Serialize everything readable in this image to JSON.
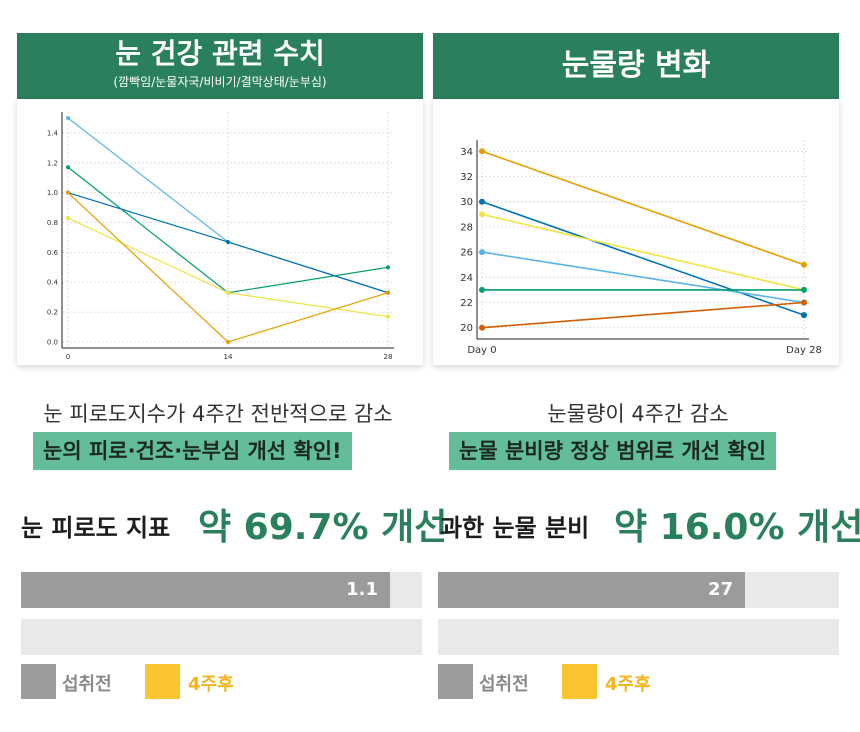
{
  "left_panel": {
    "title": "눈 건강 관련 수치",
    "subtitle": "(깜빡임/눈물자국/비비기/결막상태/눈부심)",
    "caption": "눈 피로도지수가 4주간 전반적으로 감소",
    "badge": "눈의 피로·건조·눈부심 개선 확인!",
    "metric_label": "눈 피로도 지표",
    "metric_value": "약 69.7% 개선",
    "bar_before_label": "1.1",
    "bar_before_fraction": 0.92,
    "bar_after_fraction": 0,
    "legend_before": "섭취전",
    "legend_after": "4주후"
  },
  "right_panel": {
    "title": "눈물량 변화",
    "caption": "눈물량이 4주간 감소",
    "badge": "눈물 분비량 정상 범위로 개선 확인",
    "metric_label": "과한 눈물 분비",
    "metric_value": "약 16.0% 개선",
    "bar_before_label": "27",
    "bar_before_fraction": 0.765,
    "bar_after_fraction": 0,
    "legend_before": "섭취전",
    "legend_after": "4주후"
  },
  "colors": {
    "header_green": "#2a7f5c",
    "badge_green": "#63bd98",
    "value_green": "#2a7f5c",
    "bar_before": "#9b9b9b",
    "bar_track": "#e9e9e9",
    "legend_after": "#fdc431"
  },
  "chart_data": [
    {
      "type": "line",
      "title": "눈 건강 관련 수치",
      "x": [
        0,
        14,
        28
      ],
      "xlim": [
        0,
        28
      ],
      "ylim": [
        0,
        1.5
      ],
      "yticks": [
        0.0,
        0.2,
        0.4,
        0.6,
        0.8,
        1.0,
        1.2,
        1.4
      ],
      "ytick_labels": [
        "0.0",
        "0.2",
        "0.4",
        "0.6",
        "0.8",
        "1.0",
        "1.2",
        "1.4"
      ],
      "xtick_labels": [
        "0",
        "14",
        "28"
      ],
      "grid": true,
      "series": [
        {
          "name": "series-light-blue",
          "color": "#56b4e9",
          "values": [
            1.5,
            0.67,
            0.33
          ]
        },
        {
          "name": "series-green",
          "color": "#009e73",
          "values": [
            1.17,
            0.33,
            0.5
          ]
        },
        {
          "name": "series-dark-blue",
          "color": "#0072b2",
          "values": [
            1.0,
            0.67,
            0.33
          ]
        },
        {
          "name": "series-yellow",
          "color": "#f0e442",
          "values": [
            0.83,
            0.33,
            0.17
          ]
        },
        {
          "name": "series-orange",
          "color": "#e69f00",
          "values": [
            1.0,
            0.0,
            0.33
          ]
        }
      ]
    },
    {
      "type": "line",
      "title": "눈물량 변화",
      "x": [
        0,
        28
      ],
      "xlim": [
        0,
        28
      ],
      "ylim": [
        19.5,
        34.5
      ],
      "yticks": [
        20,
        22,
        24,
        26,
        28,
        30,
        32,
        34
      ],
      "ytick_labels": [
        "20",
        "22",
        "24",
        "26",
        "28",
        "30",
        "32",
        "34"
      ],
      "xtick_labels": [
        "Day 0",
        "Day 28"
      ],
      "grid": true,
      "series": [
        {
          "name": "series-orange",
          "color": "#e69f00",
          "values": [
            34,
            25
          ]
        },
        {
          "name": "series-dark-blue",
          "color": "#0072b2",
          "values": [
            30,
            21
          ]
        },
        {
          "name": "series-yellow",
          "color": "#f0e442",
          "values": [
            29,
            23
          ]
        },
        {
          "name": "series-light-blue",
          "color": "#56b4e9",
          "values": [
            26,
            22
          ]
        },
        {
          "name": "series-green",
          "color": "#009e73",
          "values": [
            23,
            23
          ]
        },
        {
          "name": "series-red-orange",
          "color": "#d55e00",
          "values": [
            20,
            22
          ]
        }
      ]
    }
  ]
}
